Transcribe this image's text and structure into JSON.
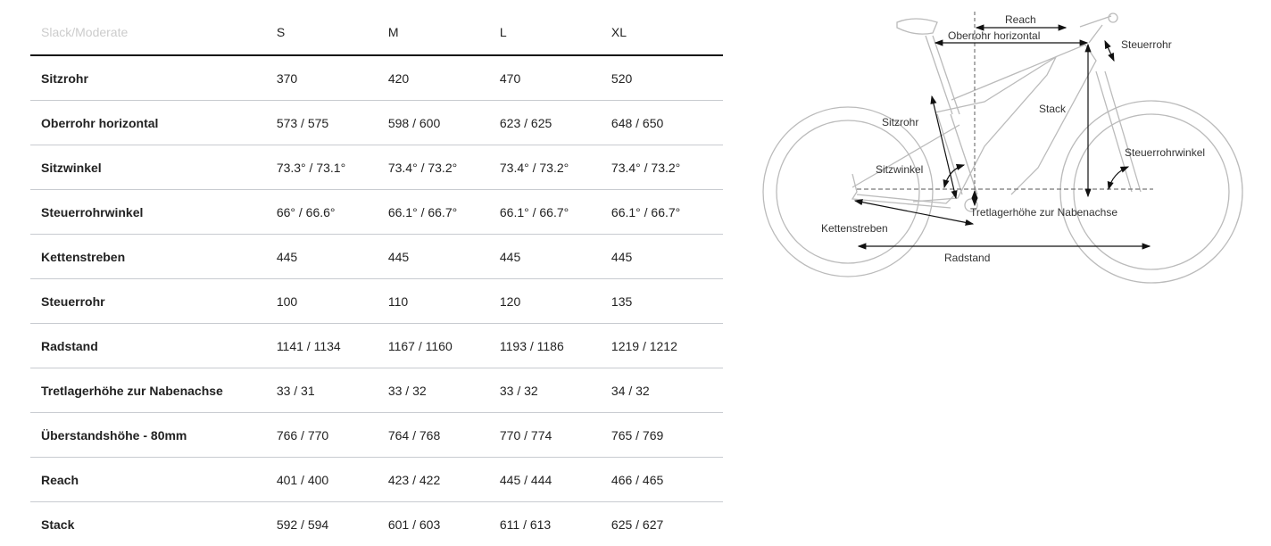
{
  "table": {
    "header": [
      "Slack/Moderate",
      "S",
      "M",
      "L",
      "XL"
    ],
    "rows": [
      [
        "Sitzrohr",
        "370",
        "420",
        "470",
        "520"
      ],
      [
        "Oberrohr horizontal",
        "573 / 575",
        "598 / 600",
        "623 / 625",
        "648 / 650"
      ],
      [
        "Sitzwinkel",
        "73.3° / 73.1°",
        "73.4° / 73.2°",
        "73.4° / 73.2°",
        "73.4° / 73.2°"
      ],
      [
        "Steuerrohrwinkel",
        "66° / 66.6°",
        "66.1° / 66.7°",
        "66.1° / 66.7°",
        "66.1° / 66.7°"
      ],
      [
        "Kettenstreben",
        "445",
        "445",
        "445",
        "445"
      ],
      [
        "Steuerrohr",
        "100",
        "110",
        "120",
        "135"
      ],
      [
        "Radstand",
        "1141 / 1134",
        "1167 / 1160",
        "1193 / 1186",
        "1219 / 1212"
      ],
      [
        "Tretlagerhöhe zur Nabenachse",
        "33 / 31",
        "33 / 32",
        "33 / 32",
        "34 / 32"
      ],
      [
        "Überstandshöhe - 80mm",
        "766 / 770",
        "764 / 768",
        "770 / 774",
        "765 / 769"
      ],
      [
        "Reach",
        "401 / 400",
        "423 / 422",
        "445 / 444",
        "466 / 465"
      ],
      [
        "Stack",
        "592 / 594",
        "601 / 603",
        "611 / 613",
        "625 / 627"
      ]
    ]
  },
  "diagram": {
    "labels": {
      "reach": "Reach",
      "oberrohr": "Oberrohr horizontal",
      "steuerrohr": "Steuerrohr",
      "stack": "Stack",
      "sitzrohr": "Sitzrohr",
      "steuerrohrwinkel": "Steuerrohrwinkel",
      "sitzwinkel": "Sitzwinkel",
      "tretlager": "Tretlagerhöhe zur Nabenachse",
      "kettenstreben": "Kettenstreben",
      "radstand": "Radstand"
    }
  }
}
